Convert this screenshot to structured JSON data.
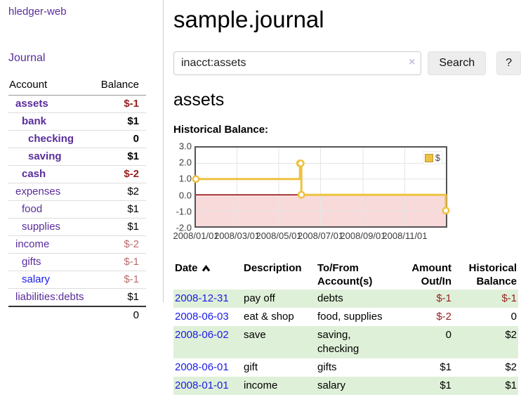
{
  "app": {
    "title": "hledger-web"
  },
  "colors": {
    "link_purple": "#5a2d9c",
    "link_blue": "#1a1ae8",
    "negative_strong": "#941f1f",
    "negative_soft": "#bd6c6c",
    "row_highlight_green": "#dff0d8",
    "chart_line_yellow": "#edc240",
    "chart_negative_pink": "#f9dada",
    "chart_zero_line_red": "#8b0000"
  },
  "sidebar": {
    "journal_link": "Journal",
    "accounts_table": {
      "headers": {
        "account": "Account",
        "balance": "Balance"
      },
      "rows": [
        {
          "name": "assets",
          "depth": 1,
          "bold": true,
          "balance": "$-1",
          "balance_neg": "strong"
        },
        {
          "name": "bank",
          "depth": 2,
          "bold": true,
          "balance": "$1"
        },
        {
          "name": "checking",
          "depth": 3,
          "bold": true,
          "balance": "0"
        },
        {
          "name": "saving",
          "depth": 3,
          "bold": true,
          "balance": "$1"
        },
        {
          "name": "cash",
          "depth": 2,
          "bold": true,
          "balance": "$-2",
          "balance_neg": "strong"
        },
        {
          "name": "expenses",
          "depth": 1,
          "bold": false,
          "balance": "$2"
        },
        {
          "name": "food",
          "depth": 2,
          "bold": false,
          "balance": "$1"
        },
        {
          "name": "supplies",
          "depth": 2,
          "bold": false,
          "balance": "$1"
        },
        {
          "name": "income",
          "depth": 1,
          "bold": false,
          "balance": "$-2",
          "balance_neg": "soft"
        },
        {
          "name": "gifts",
          "depth": 2,
          "bold": false,
          "balance": "$-1",
          "balance_neg": "soft"
        },
        {
          "name": "salary",
          "depth": 2,
          "bold": false,
          "balance": "$-1",
          "balance_neg": "soft",
          "link_style": "blue"
        },
        {
          "name": "liabilities:debts",
          "depth": 1,
          "bold": false,
          "balance": "$1"
        }
      ],
      "total": "0"
    }
  },
  "header": {
    "title": "sample.journal"
  },
  "search": {
    "value": "inacct:assets",
    "clear_icon": "×",
    "button_label": "Search",
    "help_label": "?"
  },
  "account_page": {
    "title": "assets",
    "chart_label": "Historical Balance:"
  },
  "chart_data": {
    "type": "line",
    "title": "Historical Balance",
    "steps": true,
    "series": [
      {
        "name": "$",
        "color": "#edc240",
        "points": [
          [
            "2008-01-01",
            1
          ],
          [
            "2008-06-01",
            2
          ],
          [
            "2008-06-02",
            2
          ],
          [
            "2008-06-03",
            0
          ],
          [
            "2008-12-31",
            -1
          ]
        ]
      }
    ],
    "xlim": [
      "2008-01-01",
      "2008-12-31"
    ],
    "ylim": [
      -2,
      3
    ],
    "x_tick_labels": [
      "2008/01/01",
      "2008/03/01",
      "2008/05/01",
      "2008/07/01",
      "2008/09/01",
      "2008/11/01"
    ],
    "y_tick_labels": [
      "3.0",
      "2.0",
      "1.0",
      "0.0",
      "-1.0",
      "-2.0"
    ],
    "y_ticks": [
      3,
      2,
      1,
      0,
      -1,
      -2
    ],
    "grid": true,
    "legend": {
      "label": "$",
      "position": "top-right"
    }
  },
  "register_table": {
    "headers": {
      "date": "Date",
      "description": "Description",
      "accounts": "To/From Account(s)",
      "amount": "Amount Out/In",
      "balance": "Historical Balance"
    },
    "sort": {
      "column": "date",
      "direction": "asc"
    },
    "rows": [
      {
        "date": "2008-12-31",
        "description": "pay off",
        "accounts": "debts",
        "amount": "$-1",
        "amount_neg": true,
        "balance": "$-1",
        "balance_neg": true,
        "highlight": true
      },
      {
        "date": "2008-06-03",
        "description": "eat & shop",
        "accounts": "food, supplies",
        "amount": "$-2",
        "amount_neg": true,
        "balance": "0",
        "balance_neg": false,
        "highlight": false
      },
      {
        "date": "2008-06-02",
        "description": "save",
        "accounts": "saving, checking",
        "amount": "0",
        "amount_neg": false,
        "balance": "$2",
        "balance_neg": false,
        "highlight": true
      },
      {
        "date": "2008-06-01",
        "description": "gift",
        "accounts": "gifts",
        "amount": "$1",
        "amount_neg": false,
        "balance": "$2",
        "balance_neg": false,
        "highlight": false
      },
      {
        "date": "2008-01-01",
        "description": "income",
        "accounts": "salary",
        "amount": "$1",
        "amount_neg": false,
        "balance": "$1",
        "balance_neg": false,
        "highlight": true
      }
    ]
  }
}
